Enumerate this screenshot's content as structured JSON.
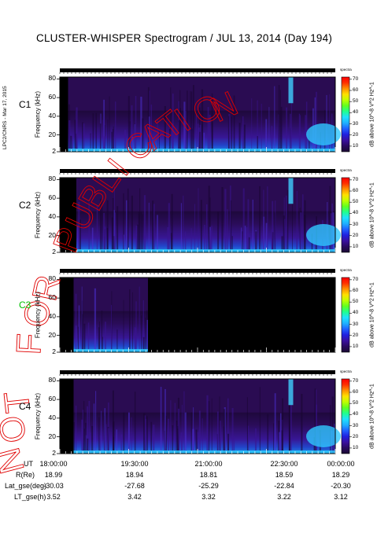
{
  "chart_data": {
    "type": "heatmap",
    "title": "CLUSTER-WHISPER Spectrogram / JUL 13, 2014 (Day 194)",
    "side_note": "LPC2/CNRS - Mar 17, 2015",
    "watermark": "NOT FOR PUBLICATION",
    "ylabel": "Frequency (kHz)",
    "y_ticks": [
      2,
      20,
      40,
      60,
      80
    ],
    "ylim": [
      2,
      82
    ],
    "colorbar": {
      "label": "dB above 10^-8 V^2 Hz^-1",
      "ticks": [
        10,
        20,
        30,
        40,
        50,
        60,
        70
      ],
      "range": [
        5,
        72
      ],
      "header": "spectra",
      "colors": [
        "#1a0a33",
        "#2a0a60",
        "#3a10a0",
        "#2020e0",
        "#2060ff",
        "#20b0ff",
        "#20e0ff",
        "#20ff90",
        "#60ff20",
        "#c0ff00",
        "#ffe000",
        "#ff9000",
        "#ff3000",
        "#ff0000"
      ]
    },
    "x_ticks": [
      "18:00:00",
      "19:30:00",
      "21:00:00",
      "22:30:00",
      "00:00:00"
    ],
    "panels": [
      {
        "name": "C1",
        "color": "#000000",
        "data_start": 0.03,
        "data_end": 1.0
      },
      {
        "name": "C2",
        "color": "#000000",
        "data_start": 0.06,
        "data_end": 1.0
      },
      {
        "name": "C3",
        "color": "#00c000",
        "data_start": 0.05,
        "data_end": 0.32
      },
      {
        "name": "C4",
        "color": "#000000",
        "data_start": 0.05,
        "data_end": 1.0
      }
    ],
    "table": {
      "rows": [
        {
          "label": "UT",
          "values": [
            "18:00:00",
            "19:30:00",
            "21:00:00",
            "22:30:00",
            "00:00:00"
          ]
        },
        {
          "label": "R(Re)",
          "values": [
            "18.99",
            "18.94",
            "18.81",
            "18.59",
            "18.29"
          ]
        },
        {
          "label": "Lat_gse(deg)",
          "values": [
            "-30.03",
            "-27.68",
            "-25.29",
            "-22.84",
            "-20.30"
          ]
        },
        {
          "label": "LT_gse(h)",
          "values": [
            "3.52",
            "3.42",
            "3.32",
            "3.22",
            "3.12"
          ]
        }
      ]
    }
  }
}
